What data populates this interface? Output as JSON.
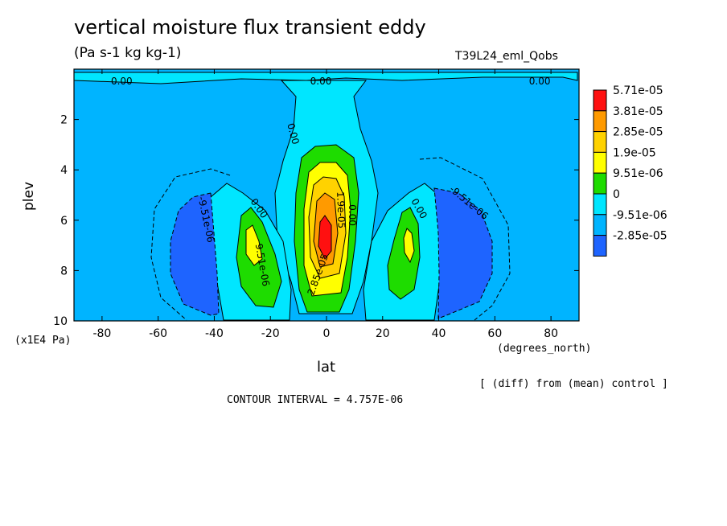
{
  "chart_data": {
    "type": "heatmap",
    "title": "vertical moisture flux transient eddy",
    "subtitle": "(Pa s-1 kg kg-1)",
    "run_label": "T39L24_eml_Qobs",
    "xlabel": "lat",
    "x_units": "(degrees_north)",
    "ylabel": "plev",
    "y_units": "(x1E4 Pa)",
    "xlim": [
      -90,
      90
    ],
    "ylim": [
      0,
      10
    ],
    "y_inverted": true,
    "x_ticks": [
      -80,
      -60,
      -40,
      -20,
      0,
      20,
      40,
      60,
      80
    ],
    "y_ticks": [
      2,
      4,
      6,
      8,
      10
    ],
    "note": "[ (diff) from (mean) control ]",
    "contour_interval": "CONTOUR INTERVAL = 4.757E-06",
    "legend": {
      "placement": "right",
      "labels": [
        "5.71e-05",
        "3.81e-05",
        "2.85e-05",
        "1.9e-05",
        "9.51e-06",
        "0",
        "-9.51e-06",
        "-2.85e-05"
      ],
      "colors": [
        "#ff1010",
        "#ff9a00",
        "#ffd200",
        "#ffff00",
        "#1edc00",
        "#00e6ff",
        "#00b4ff",
        "#1e64ff"
      ]
    },
    "contour_labels": [
      "0.00",
      "0.00",
      "0.00",
      "0.00",
      "0.00",
      "0.00",
      "0.00",
      "-9.51e-06",
      "-9.51e-06",
      "9.51e-06",
      "1.9e-05",
      "2.85e-05"
    ],
    "features": [
      {
        "name": "equatorial maximum",
        "lat": 0,
        "plev": 7,
        "value": 5.71e-05
      },
      {
        "name": "southern positive cell",
        "lat": -27,
        "plev": 7,
        "value": 2.85e-05
      },
      {
        "name": "northern positive cell",
        "lat": 28,
        "plev": 7,
        "value": 2.85e-05
      },
      {
        "name": "southern negative cell",
        "lat": -47,
        "plev": 7,
        "value": -2.85e-05
      },
      {
        "name": "northern negative cell",
        "lat": 48,
        "plev": 7,
        "value": -2.85e-05
      }
    ]
  }
}
